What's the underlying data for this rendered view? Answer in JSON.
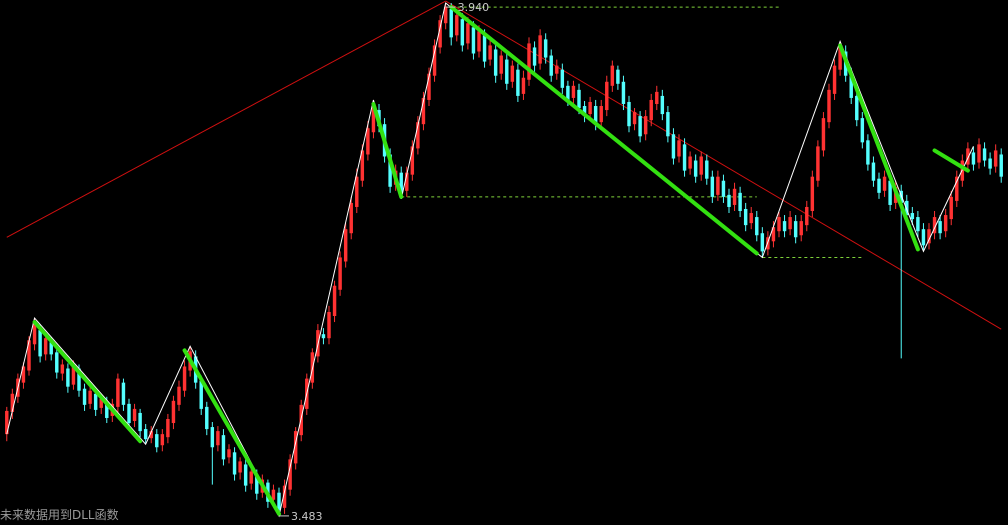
{
  "chart_data": {
    "type": "candlestick",
    "colors": {
      "background": "#000000",
      "up": "#ff3232",
      "down": "#54ffff",
      "trend": "#d01010",
      "zigzag": "#ffffff",
      "wave": "#33e011",
      "level": "#7fd23a",
      "label": "#c8c8c8"
    },
    "ylim": [
      3.455,
      3.975
    ],
    "x_count": 180,
    "candles": [
      [
        0,
        3.545,
        3.568,
        3.538,
        3.572
      ],
      [
        1,
        3.567,
        3.585,
        3.56,
        3.59
      ],
      [
        2,
        3.582,
        3.6,
        3.576,
        3.605
      ],
      [
        3,
        3.596,
        3.612,
        3.59,
        3.616
      ],
      [
        4,
        3.608,
        3.638,
        3.603,
        3.642
      ],
      [
        5,
        3.634,
        3.656,
        3.628,
        3.66
      ],
      [
        6,
        3.648,
        3.622,
        3.616,
        3.654
      ],
      [
        7,
        3.624,
        3.64,
        3.618,
        3.645
      ],
      [
        8,
        3.636,
        3.624,
        3.618,
        3.641
      ],
      [
        9,
        3.626,
        3.606,
        3.6,
        3.63
      ],
      [
        10,
        3.605,
        3.614,
        3.598,
        3.619
      ],
      [
        11,
        3.61,
        3.592,
        3.586,
        3.615
      ],
      [
        12,
        3.594,
        3.614,
        3.589,
        3.618
      ],
      [
        13,
        3.61,
        3.588,
        3.582,
        3.614
      ],
      [
        14,
        3.59,
        3.574,
        3.568,
        3.595
      ],
      [
        15,
        3.575,
        3.588,
        3.57,
        3.592
      ],
      [
        16,
        3.585,
        3.569,
        3.563,
        3.59
      ],
      [
        17,
        3.571,
        3.58,
        3.565,
        3.585
      ],
      [
        18,
        3.577,
        3.561,
        3.556,
        3.582
      ],
      [
        19,
        3.563,
        3.575,
        3.557,
        3.58
      ],
      [
        20,
        3.572,
        3.6,
        3.566,
        3.605
      ],
      [
        21,
        3.596,
        3.574,
        3.568,
        3.6
      ],
      [
        22,
        3.575,
        3.556,
        3.55,
        3.58
      ],
      [
        23,
        3.558,
        3.57,
        3.552,
        3.575
      ],
      [
        24,
        3.566,
        3.548,
        3.542,
        3.57
      ],
      [
        25,
        3.55,
        3.54,
        3.535,
        3.555
      ],
      [
        26,
        3.541,
        3.548,
        3.536,
        3.553
      ],
      [
        27,
        3.545,
        3.532,
        3.527,
        3.55
      ],
      [
        28,
        3.534,
        3.545,
        3.528,
        3.55
      ],
      [
        29,
        3.542,
        3.56,
        3.536,
        3.565
      ],
      [
        30,
        3.556,
        3.578,
        3.55,
        3.583
      ],
      [
        31,
        3.574,
        3.592,
        3.568,
        3.598
      ],
      [
        32,
        3.588,
        3.612,
        3.582,
        3.618
      ],
      [
        33,
        3.608,
        3.627,
        3.602,
        3.632
      ],
      [
        34,
        3.622,
        3.596,
        3.59,
        3.628
      ],
      [
        35,
        3.598,
        3.57,
        3.564,
        3.603
      ],
      [
        36,
        3.572,
        3.55,
        3.544,
        3.577
      ],
      [
        37,
        3.552,
        3.532,
        3.495,
        3.557
      ],
      [
        38,
        3.534,
        3.548,
        3.528,
        3.553
      ],
      [
        39,
        3.544,
        3.52,
        3.514,
        3.55
      ],
      [
        40,
        3.522,
        3.53,
        3.516,
        3.535
      ],
      [
        41,
        3.527,
        3.505,
        3.499,
        3.532
      ],
      [
        42,
        3.507,
        3.518,
        3.5,
        3.522
      ],
      [
        43,
        3.515,
        3.494,
        3.488,
        3.52
      ],
      [
        44,
        3.496,
        3.508,
        3.49,
        3.512
      ],
      [
        45,
        3.505,
        3.486,
        3.48,
        3.51
      ],
      [
        46,
        3.487,
        3.5,
        3.482,
        3.505
      ],
      [
        47,
        3.497,
        3.478,
        3.472,
        3.5
      ],
      [
        48,
        3.48,
        3.49,
        3.474,
        3.495
      ],
      [
        49,
        3.487,
        3.47,
        3.464,
        3.492
      ],
      [
        50,
        3.472,
        3.494,
        3.466,
        3.5
      ],
      [
        51,
        3.49,
        3.52,
        3.484,
        3.525
      ],
      [
        52,
        3.516,
        3.548,
        3.51,
        3.552
      ],
      [
        53,
        3.544,
        3.574,
        3.538,
        3.579
      ],
      [
        54,
        3.57,
        3.6,
        3.564,
        3.605
      ],
      [
        55,
        3.596,
        3.626,
        3.59,
        3.63
      ],
      [
        56,
        3.622,
        3.648,
        3.616,
        3.654
      ],
      [
        57,
        3.644,
        3.64,
        3.634,
        3.65
      ],
      [
        58,
        3.64,
        3.666,
        3.634,
        3.672
      ],
      [
        59,
        3.662,
        3.692,
        3.656,
        3.697
      ],
      [
        60,
        3.688,
        3.72,
        3.682,
        3.726
      ],
      [
        61,
        3.716,
        3.748,
        3.71,
        3.754
      ],
      [
        62,
        3.744,
        3.774,
        3.738,
        3.78
      ],
      [
        63,
        3.77,
        3.8,
        3.764,
        3.808
      ],
      [
        64,
        3.796,
        3.826,
        3.79,
        3.832
      ],
      [
        65,
        3.822,
        3.848,
        3.816,
        3.855
      ],
      [
        66,
        3.844,
        3.87,
        3.838,
        3.876
      ],
      [
        67,
        3.866,
        3.85,
        3.844,
        3.872
      ],
      [
        68,
        3.852,
        3.82,
        3.814,
        3.858
      ],
      [
        69,
        3.822,
        3.79,
        3.784,
        3.828
      ],
      [
        70,
        3.792,
        3.806,
        3.786,
        3.812
      ],
      [
        71,
        3.804,
        3.784,
        3.778,
        3.81
      ],
      [
        72,
        3.786,
        3.804,
        3.78,
        3.81
      ],
      [
        73,
        3.802,
        3.83,
        3.796,
        3.836
      ],
      [
        74,
        3.828,
        3.854,
        3.822,
        3.86
      ],
      [
        75,
        3.852,
        3.878,
        3.846,
        3.884
      ],
      [
        76,
        3.876,
        3.902,
        3.87,
        3.908
      ],
      [
        77,
        3.9,
        3.93,
        3.894,
        3.936
      ],
      [
        78,
        3.928,
        3.955,
        3.922,
        3.96
      ],
      [
        79,
        3.952,
        3.968,
        3.946,
        3.972
      ],
      [
        80,
        3.966,
        3.938,
        3.93,
        3.972
      ],
      [
        81,
        3.94,
        3.96,
        3.934,
        3.966
      ],
      [
        82,
        3.956,
        3.93,
        3.924,
        3.962
      ],
      [
        83,
        3.932,
        3.952,
        3.926,
        3.958
      ],
      [
        84,
        3.948,
        3.922,
        3.916,
        3.954
      ],
      [
        85,
        3.924,
        3.944,
        3.918,
        3.95
      ],
      [
        86,
        3.94,
        3.914,
        3.908,
        3.946
      ],
      [
        87,
        3.916,
        3.93,
        3.91,
        3.935
      ],
      [
        88,
        3.926,
        3.9,
        3.893,
        3.932
      ],
      [
        89,
        3.902,
        3.92,
        3.896,
        3.925
      ],
      [
        90,
        3.916,
        3.892,
        3.886,
        3.922
      ],
      [
        91,
        3.894,
        3.91,
        3.888,
        3.915
      ],
      [
        92,
        3.906,
        3.88,
        3.874,
        3.912
      ],
      [
        93,
        3.882,
        3.898,
        3.876,
        3.905
      ],
      [
        94,
        3.896,
        3.932,
        3.89,
        3.938
      ],
      [
        95,
        3.928,
        3.91,
        3.904,
        3.934
      ],
      [
        96,
        3.912,
        3.94,
        3.906,
        3.946
      ],
      [
        97,
        3.936,
        3.918,
        3.912,
        3.942
      ],
      [
        98,
        3.92,
        3.9,
        3.894,
        3.926
      ],
      [
        99,
        3.902,
        3.91,
        3.896,
        3.916
      ],
      [
        100,
        3.906,
        3.888,
        3.882,
        3.912
      ],
      [
        101,
        3.89,
        3.876,
        3.87,
        3.895
      ],
      [
        102,
        3.878,
        3.89,
        3.872,
        3.895
      ],
      [
        103,
        3.886,
        3.868,
        3.862,
        3.892
      ],
      [
        104,
        3.87,
        3.86,
        3.854,
        3.875
      ],
      [
        105,
        3.862,
        3.874,
        3.856,
        3.879
      ],
      [
        106,
        3.87,
        3.852,
        3.846,
        3.876
      ],
      [
        107,
        3.854,
        3.87,
        3.848,
        3.876
      ],
      [
        108,
        3.866,
        3.894,
        3.86,
        3.9
      ],
      [
        109,
        3.89,
        3.91,
        3.884,
        3.915
      ],
      [
        110,
        3.906,
        3.892,
        3.886,
        3.91
      ],
      [
        111,
        3.894,
        3.872,
        3.866,
        3.9
      ],
      [
        112,
        3.874,
        3.85,
        3.844,
        3.88
      ],
      [
        113,
        3.852,
        3.864,
        3.846,
        3.868
      ],
      [
        114,
        3.86,
        3.84,
        3.834,
        3.865
      ],
      [
        115,
        3.842,
        3.86,
        3.836,
        3.866
      ],
      [
        116,
        3.856,
        3.876,
        3.85,
        3.882
      ],
      [
        117,
        3.872,
        3.884,
        3.866,
        3.89
      ],
      [
        118,
        3.88,
        3.862,
        3.856,
        3.886
      ],
      [
        119,
        3.864,
        3.84,
        3.834,
        3.87
      ],
      [
        120,
        3.842,
        3.818,
        3.812,
        3.848
      ],
      [
        121,
        3.82,
        3.836,
        3.814,
        3.842
      ],
      [
        122,
        3.832,
        3.806,
        3.8,
        3.838
      ],
      [
        123,
        3.808,
        3.82,
        3.802,
        3.825
      ],
      [
        124,
        3.816,
        3.8,
        3.794,
        3.822
      ],
      [
        125,
        3.802,
        3.82,
        3.796,
        3.825
      ],
      [
        126,
        3.816,
        3.798,
        3.792,
        3.822
      ],
      [
        127,
        3.8,
        3.78,
        3.774,
        3.806
      ],
      [
        128,
        3.782,
        3.8,
        3.776,
        3.806
      ],
      [
        129,
        3.796,
        3.78,
        3.774,
        3.802
      ],
      [
        130,
        3.782,
        3.77,
        3.764,
        3.788
      ],
      [
        131,
        3.772,
        3.788,
        3.766,
        3.794
      ],
      [
        132,
        3.784,
        3.766,
        3.76,
        3.79
      ],
      [
        133,
        3.768,
        3.752,
        3.746,
        3.774
      ],
      [
        134,
        3.754,
        3.764,
        3.748,
        3.77
      ],
      [
        135,
        3.76,
        3.742,
        3.736,
        3.766
      ],
      [
        136,
        3.744,
        3.726,
        3.72,
        3.75
      ],
      [
        137,
        3.728,
        3.74,
        3.722,
        3.746
      ],
      [
        138,
        3.736,
        3.75,
        3.73,
        3.756
      ],
      [
        139,
        3.746,
        3.76,
        3.74,
        3.765
      ],
      [
        140,
        3.756,
        3.746,
        3.74,
        3.762
      ],
      [
        141,
        3.748,
        3.76,
        3.742,
        3.766
      ],
      [
        142,
        3.756,
        3.74,
        3.734,
        3.762
      ],
      [
        143,
        3.742,
        3.756,
        3.736,
        3.762
      ],
      [
        144,
        3.752,
        3.77,
        3.746,
        3.776
      ],
      [
        145,
        3.766,
        3.8,
        3.76,
        3.806
      ],
      [
        146,
        3.796,
        3.83,
        3.79,
        3.836
      ],
      [
        147,
        3.826,
        3.858,
        3.82,
        3.864
      ],
      [
        148,
        3.854,
        3.886,
        3.848,
        3.892
      ],
      [
        149,
        3.882,
        3.91,
        3.876,
        3.916
      ],
      [
        150,
        3.906,
        3.928,
        3.9,
        3.934
      ],
      [
        151,
        3.924,
        3.9,
        3.894,
        3.93
      ],
      [
        152,
        3.902,
        3.878,
        3.872,
        3.908
      ],
      [
        153,
        3.88,
        3.856,
        3.85,
        3.886
      ],
      [
        154,
        3.858,
        3.834,
        3.828,
        3.864
      ],
      [
        155,
        3.836,
        3.812,
        3.806,
        3.842
      ],
      [
        156,
        3.814,
        3.796,
        3.79,
        3.82
      ],
      [
        157,
        3.798,
        3.784,
        3.778,
        3.804
      ],
      [
        158,
        3.786,
        3.8,
        3.78,
        3.806
      ],
      [
        159,
        3.796,
        3.772,
        3.766,
        3.802
      ],
      [
        160,
        3.774,
        3.79,
        3.768,
        3.796
      ],
      [
        161,
        3.786,
        3.774,
        3.62,
        3.792
      ],
      [
        162,
        3.776,
        3.762,
        3.756,
        3.782
      ],
      [
        163,
        3.764,
        3.758,
        3.752,
        3.77
      ],
      [
        164,
        3.76,
        3.746,
        3.74,
        3.766
      ],
      [
        165,
        3.748,
        3.732,
        3.726,
        3.754
      ],
      [
        166,
        3.734,
        3.748,
        3.728,
        3.754
      ],
      [
        167,
        3.744,
        3.76,
        3.738,
        3.766
      ],
      [
        168,
        3.756,
        3.744,
        3.738,
        3.762
      ],
      [
        169,
        3.746,
        3.762,
        3.74,
        3.768
      ],
      [
        170,
        3.758,
        3.78,
        3.752,
        3.786
      ],
      [
        171,
        3.776,
        3.8,
        3.77,
        3.806
      ],
      [
        172,
        3.796,
        3.816,
        3.79,
        3.822
      ],
      [
        173,
        3.812,
        3.828,
        3.806,
        3.834
      ],
      [
        174,
        3.824,
        3.812,
        3.806,
        3.83
      ],
      [
        175,
        3.814,
        3.832,
        3.808,
        3.838
      ],
      [
        176,
        3.828,
        3.816,
        3.81,
        3.834
      ],
      [
        177,
        3.818,
        3.808,
        3.802,
        3.824
      ],
      [
        178,
        3.81,
        3.826,
        3.804,
        3.832
      ],
      [
        179,
        3.822,
        3.8,
        3.794,
        3.828
      ]
    ],
    "zigzag": [
      [
        0,
        3.545
      ],
      [
        5,
        3.66
      ],
      [
        25,
        3.535
      ],
      [
        33,
        3.632
      ],
      [
        49,
        3.464
      ],
      [
        66,
        3.876
      ],
      [
        71,
        3.778
      ],
      [
        79,
        3.972
      ],
      [
        136,
        3.72
      ],
      [
        150,
        3.934
      ],
      [
        165,
        3.726
      ],
      [
        174,
        3.83
      ]
    ],
    "waves": [
      [
        5,
        3.656,
        24,
        3.538
      ],
      [
        32,
        3.628,
        49,
        3.466
      ],
      [
        66,
        3.872,
        71,
        3.78
      ],
      [
        80,
        3.968,
        135,
        3.724
      ],
      [
        150,
        3.93,
        164,
        3.728
      ],
      [
        167,
        3.826,
        173,
        3.806
      ]
    ],
    "trendlines": [
      [
        0,
        3.74,
        79,
        3.974
      ],
      [
        79,
        3.974,
        179,
        3.649
      ]
    ],
    "levels": [
      [
        79,
        139,
        3.968
      ],
      [
        71,
        135,
        3.78
      ],
      [
        136,
        154,
        3.72
      ]
    ],
    "annotations": [
      {
        "x": 79,
        "y": 3.968,
        "text": "3.940",
        "pos": "right"
      },
      {
        "x": 49,
        "y": 3.464,
        "text": "3.483",
        "pos": "right"
      }
    ],
    "footer": "未来数据用到DLL函数"
  }
}
